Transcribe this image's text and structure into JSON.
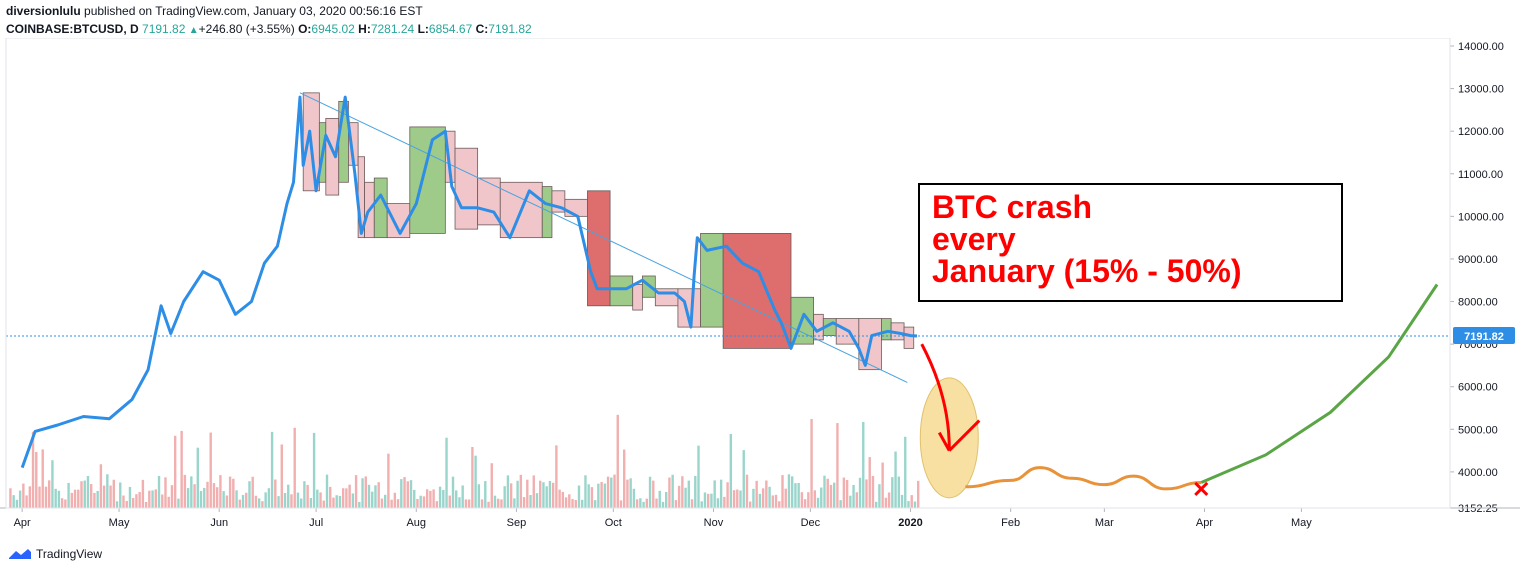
{
  "header": {
    "author": "diversionlulu",
    "published": "published on TradingView.com, January 03, 2020 00:56:16 EST",
    "symbol": "COINBASE:BTCUSD, D",
    "last": "7191.82",
    "change": "+246.80 (+3.55%)",
    "open_label": "O:",
    "open": "6945.02",
    "high_label": "H:",
    "high": "7281.24",
    "low_label": "L:",
    "low": "6854.67",
    "close_label": "C:",
    "close": "7191.82"
  },
  "footer": {
    "brand": "TradingView"
  },
  "annotation": {
    "line1": "BTC crash",
    "line2": "every",
    "line3": "January (15% - 50%)"
  },
  "colors": {
    "price_line": "#2e8ee6",
    "up_box": "#9ecb8a",
    "down_box_light": "#f1c6cb",
    "down_box_dark": "#de6d6d",
    "trend_line": "#4aa3df",
    "annotation_red": "#ff0000",
    "projection_orange": "#e8923a",
    "projection_green": "#5aa545",
    "ellipse": "#f7d98b",
    "vol_up": "#8fd0c6",
    "vol_down": "#f0a6a6"
  },
  "chart_data": {
    "type": "line",
    "title": "",
    "xlabel": "",
    "ylabel": "",
    "ylim": [
      3152.25,
      14000
    ],
    "x_ticks": [
      "Apr",
      "May",
      "Jun",
      "Jul",
      "Aug",
      "Sep",
      "Oct",
      "Nov",
      "Dec",
      "2020",
      "Feb",
      "Mar",
      "Apr",
      "May"
    ],
    "y_ticks": [
      "14000.00",
      "13000.00",
      "12000.00",
      "11000.00",
      "10000.00",
      "9000.00",
      "8000.00",
      "7000.00",
      "6000.00",
      "5000.00",
      "4000.00",
      "3152.25"
    ],
    "last_price_label": "7191.82",
    "series": [
      {
        "type": "line",
        "x": [
          "2019-04-01",
          "2019-04-05",
          "2019-04-12",
          "2019-04-20",
          "2019-04-28",
          "2019-05-05",
          "2019-05-10",
          "2019-05-14",
          "2019-05-17",
          "2019-05-21",
          "2019-05-27",
          "2019-06-01",
          "2019-06-06",
          "2019-06-11",
          "2019-06-15",
          "2019-06-19",
          "2019-06-22",
          "2019-06-24",
          "2019-06-26",
          "2019-06-27",
          "2019-06-29",
          "2019-07-01",
          "2019-07-04",
          "2019-07-07",
          "2019-07-10",
          "2019-07-13",
          "2019-07-15",
          "2019-07-17",
          "2019-07-21",
          "2019-07-27",
          "2019-08-01",
          "2019-08-06",
          "2019-08-10",
          "2019-08-12",
          "2019-08-15",
          "2019-08-20",
          "2019-08-25",
          "2019-08-30",
          "2019-09-05",
          "2019-09-10",
          "2019-09-15",
          "2019-09-20",
          "2019-09-24",
          "2019-09-26",
          "2019-10-01",
          "2019-10-05",
          "2019-10-10",
          "2019-10-15",
          "2019-10-20",
          "2019-10-23",
          "2019-10-25",
          "2019-10-26",
          "2019-10-27",
          "2019-10-30",
          "2019-11-05",
          "2019-11-10",
          "2019-11-15",
          "2019-11-20",
          "2019-11-22",
          "2019-11-25",
          "2019-11-29",
          "2019-12-03",
          "2019-12-08",
          "2019-12-13",
          "2019-12-16",
          "2019-12-18",
          "2019-12-20",
          "2019-12-25",
          "2019-12-29",
          "2020-01-01",
          "2020-01-03"
        ],
        "y": [
          4100,
          4950,
          5100,
          5300,
          5250,
          5700,
          6400,
          7900,
          7250,
          8000,
          8700,
          8500,
          7700,
          8000,
          8900,
          9300,
          10300,
          10800,
          12800,
          11200,
          12000,
          10600,
          11900,
          11400,
          12800,
          11000,
          9600,
          10100,
          10500,
          9600,
          10300,
          11800,
          12000,
          10700,
          10200,
          10200,
          10100,
          9500,
          10600,
          10300,
          10200,
          10000,
          8700,
          8300,
          8300,
          8300,
          8500,
          8200,
          8200,
          8000,
          7400,
          8600,
          9500,
          9200,
          9300,
          8900,
          8700,
          7800,
          7500,
          6900,
          7700,
          7300,
          7500,
          7300,
          6900,
          6500,
          7200,
          7300,
          7250,
          7200,
          7191.82
        ]
      },
      {
        "type": "trend_line",
        "x": [
          "2019-06-26",
          "2019-12-31"
        ],
        "y": [
          12900,
          6100
        ]
      }
    ],
    "boxes": [
      {
        "x0": "2019-06-27",
        "x1": "2019-07-02",
        "low": 10600,
        "high": 12900,
        "color": "down_light"
      },
      {
        "x0": "2019-07-02",
        "x1": "2019-07-04",
        "low": 10800,
        "high": 12200,
        "color": "up"
      },
      {
        "x0": "2019-07-04",
        "x1": "2019-07-08",
        "low": 10500,
        "high": 12300,
        "color": "down_light"
      },
      {
        "x0": "2019-07-08",
        "x1": "2019-07-11",
        "low": 10800,
        "high": 12700,
        "color": "up"
      },
      {
        "x0": "2019-07-11",
        "x1": "2019-07-14",
        "low": 11200,
        "high": 12200,
        "color": "down_light"
      },
      {
        "x0": "2019-07-14",
        "x1": "2019-07-16",
        "low": 9500,
        "high": 11400,
        "color": "down_light"
      },
      {
        "x0": "2019-07-16",
        "x1": "2019-07-19",
        "low": 9500,
        "high": 10800,
        "color": "down_light"
      },
      {
        "x0": "2019-07-19",
        "x1": "2019-07-23",
        "low": 9500,
        "high": 10900,
        "color": "up"
      },
      {
        "x0": "2019-07-23",
        "x1": "2019-07-30",
        "low": 9500,
        "high": 10300,
        "color": "down_light"
      },
      {
        "x0": "2019-07-30",
        "x1": "2019-08-10",
        "low": 9600,
        "high": 12100,
        "color": "up"
      },
      {
        "x0": "2019-08-10",
        "x1": "2019-08-13",
        "low": 10800,
        "high": 12000,
        "color": "down_light"
      },
      {
        "x0": "2019-08-13",
        "x1": "2019-08-20",
        "low": 9700,
        "high": 11600,
        "color": "down_light"
      },
      {
        "x0": "2019-08-20",
        "x1": "2019-08-27",
        "low": 9800,
        "high": 10900,
        "color": "down_light"
      },
      {
        "x0": "2019-08-27",
        "x1": "2019-09-09",
        "low": 9500,
        "high": 10800,
        "color": "down_light"
      },
      {
        "x0": "2019-09-09",
        "x1": "2019-09-12",
        "low": 9500,
        "high": 10700,
        "color": "up"
      },
      {
        "x0": "2019-09-12",
        "x1": "2019-09-16",
        "low": 10100,
        "high": 10600,
        "color": "down_light"
      },
      {
        "x0": "2019-09-16",
        "x1": "2019-09-23",
        "low": 10000,
        "high": 10400,
        "color": "down_light"
      },
      {
        "x0": "2019-09-23",
        "x1": "2019-09-30",
        "low": 7900,
        "high": 10600,
        "color": "down_dark"
      },
      {
        "x0": "2019-09-30",
        "x1": "2019-10-07",
        "low": 7900,
        "high": 8600,
        "color": "up"
      },
      {
        "x0": "2019-10-07",
        "x1": "2019-10-10",
        "low": 7800,
        "high": 8400,
        "color": "down_light"
      },
      {
        "x0": "2019-10-10",
        "x1": "2019-10-14",
        "low": 8100,
        "high": 8600,
        "color": "up"
      },
      {
        "x0": "2019-10-14",
        "x1": "2019-10-21",
        "low": 7900,
        "high": 8300,
        "color": "down_light"
      },
      {
        "x0": "2019-10-21",
        "x1": "2019-10-28",
        "low": 7400,
        "high": 8300,
        "color": "down_light"
      },
      {
        "x0": "2019-10-28",
        "x1": "2019-11-04",
        "low": 7400,
        "high": 9600,
        "color": "up"
      },
      {
        "x0": "2019-11-04",
        "x1": "2019-11-25",
        "low": 6900,
        "high": 9600,
        "color": "down_dark"
      },
      {
        "x0": "2019-11-25",
        "x1": "2019-12-02",
        "low": 7000,
        "high": 8100,
        "color": "up"
      },
      {
        "x0": "2019-12-02",
        "x1": "2019-12-05",
        "low": 7100,
        "high": 7700,
        "color": "down_light"
      },
      {
        "x0": "2019-12-05",
        "x1": "2019-12-09",
        "low": 7200,
        "high": 7600,
        "color": "up"
      },
      {
        "x0": "2019-12-09",
        "x1": "2019-12-16",
        "low": 7000,
        "high": 7600,
        "color": "down_light"
      },
      {
        "x0": "2019-12-16",
        "x1": "2019-12-23",
        "low": 6400,
        "high": 7600,
        "color": "down_light"
      },
      {
        "x0": "2019-12-23",
        "x1": "2019-12-26",
        "low": 7100,
        "high": 7600,
        "color": "up"
      },
      {
        "x0": "2019-12-26",
        "x1": "2019-12-30",
        "low": 7100,
        "high": 7500,
        "color": "down_light"
      },
      {
        "x0": "2019-12-30",
        "x1": "2020-01-02",
        "low": 6900,
        "high": 7400,
        "color": "down_light"
      }
    ],
    "projection": {
      "orange_wave": {
        "x": [
          "2020-01-18",
          "2020-02-01",
          "2020-02-10",
          "2020-02-20",
          "2020-03-01",
          "2020-03-10",
          "2020-03-20",
          "2020-03-31"
        ],
        "y": [
          3650,
          3800,
          4100,
          3850,
          3700,
          3900,
          3600,
          3750
        ]
      },
      "green_curve": {
        "x": [
          "2020-03-31",
          "2020-04-20",
          "2020-05-10",
          "2020-05-28",
          "2020-06-12"
        ],
        "y": [
          3750,
          4400,
          5400,
          6700,
          8400
        ]
      },
      "red_arrow": {
        "from": {
          "x": "2020-01-02",
          "y": 7000
        },
        "to": {
          "x": "2020-01-13",
          "y": 4500
        }
      },
      "ellipse": {
        "x": "2020-01-13",
        "y": 4800
      },
      "cross": {
        "x": "2020-03-31",
        "y": 3600
      }
    }
  }
}
